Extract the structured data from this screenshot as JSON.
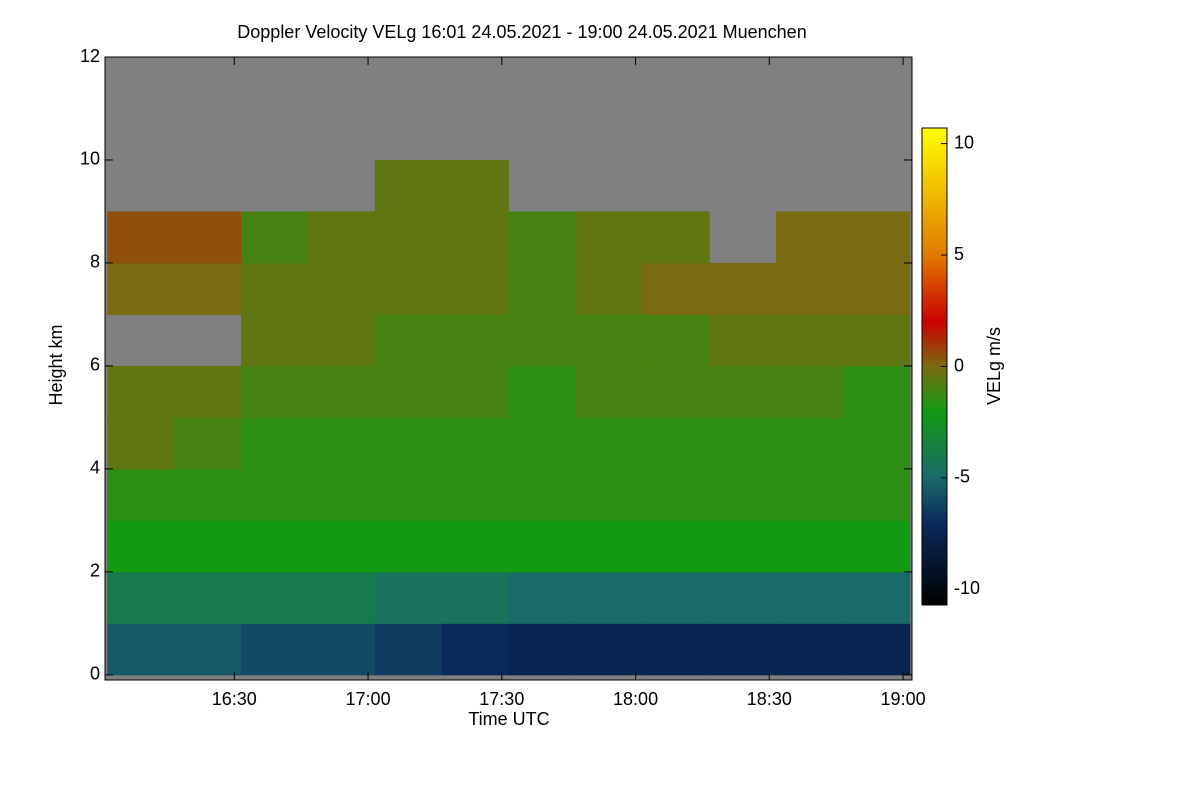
{
  "chart_data": {
    "type": "heatmap",
    "title": "Doppler Velocity VELg   16:01 24.05.2021 - 19:00 24.05.2021 Muenchen",
    "x_label": "Time UTC",
    "y_label": "Height km",
    "colorbar_label": "VELg m/s",
    "xlim": [
      961,
      1142
    ],
    "xticks": [
      {
        "value": 990,
        "label": "16:30"
      },
      {
        "value": 1020,
        "label": "17:00"
      },
      {
        "value": 1050,
        "label": "17:30"
      },
      {
        "value": 1080,
        "label": "18:00"
      },
      {
        "value": 1110,
        "label": "18:30"
      },
      {
        "value": 1140,
        "label": "19:00"
      }
    ],
    "ylim": [
      -0.1,
      12
    ],
    "yticks": [
      0,
      2,
      4,
      6,
      8,
      10,
      12
    ],
    "zlim": [
      -10.7,
      10.7
    ],
    "zticks": [
      -10,
      -5,
      0,
      5,
      10
    ],
    "missing_color": "#808080",
    "colorscale": [
      [
        -10.7,
        "#000000"
      ],
      [
        -7,
        "#0a2a5c"
      ],
      [
        -5,
        "#1a6a6a"
      ],
      [
        -2,
        "#129a12"
      ],
      [
        0,
        "#7a6a10"
      ],
      [
        2,
        "#cc0000"
      ],
      [
        5,
        "#e07a00"
      ],
      [
        10.7,
        "#ffff00"
      ]
    ],
    "x": [
      969,
      984,
      999,
      1014,
      1029,
      1044,
      1059,
      1074,
      1089,
      1104,
      1119,
      1134
    ],
    "y": [
      0.5,
      1.5,
      2.5,
      3.5,
      4.5,
      5.5,
      6.5,
      7.5,
      8.5,
      9.5,
      10.5,
      11.5
    ],
    "z": [
      [
        -5.5,
        -5.5,
        -6,
        -6,
        -6.5,
        -7,
        -7.5,
        -7.5,
        -7.5,
        -7.5,
        -7.5,
        -7.5
      ],
      [
        -4,
        -4,
        -4,
        -4,
        -4.5,
        -4.5,
        -5,
        -5,
        -5,
        -5,
        -5,
        -5
      ],
      [
        -2,
        -2,
        -2,
        -2,
        -2,
        -2,
        -2,
        -2,
        -2,
        -2,
        -2,
        -2
      ],
      [
        -1.5,
        -1.5,
        -1.5,
        -1.5,
        -1.5,
        -1.5,
        -1.5,
        -1.5,
        -1.5,
        -1.5,
        -1.5,
        -1.5
      ],
      [
        -0.5,
        -1,
        -1.5,
        -1.5,
        -1.5,
        -1.5,
        -1.5,
        -1.5,
        -1.5,
        -1.5,
        -1.5,
        -1.5
      ],
      [
        -0.5,
        -0.5,
        -1,
        -1,
        -1,
        -1,
        -1.5,
        -1,
        -1,
        -1,
        -1,
        -1.5
      ],
      [
        null,
        null,
        -0.5,
        -0.5,
        -1,
        -1,
        -1,
        -1,
        -1,
        -0.5,
        -0.5,
        -0.5
      ],
      [
        0,
        0,
        -0.5,
        -0.5,
        -0.5,
        -0.5,
        -1,
        -0.5,
        0,
        0,
        0,
        0
      ],
      [
        0.5,
        0.5,
        -1,
        -0.5,
        -0.5,
        -0.5,
        -1,
        -0.5,
        -0.5,
        null,
        0,
        0
      ],
      [
        null,
        null,
        null,
        null,
        -0.5,
        -0.5,
        null,
        null,
        null,
        null,
        null,
        null
      ],
      [
        null,
        null,
        null,
        null,
        null,
        null,
        null,
        null,
        null,
        null,
        null,
        null
      ],
      [
        null,
        null,
        null,
        null,
        null,
        null,
        null,
        null,
        null,
        null,
        null,
        null
      ]
    ]
  }
}
